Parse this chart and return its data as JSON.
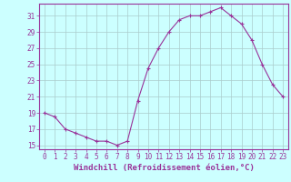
{
  "x": [
    0,
    1,
    2,
    3,
    4,
    5,
    6,
    7,
    8,
    9,
    10,
    11,
    12,
    13,
    14,
    15,
    16,
    17,
    18,
    19,
    20,
    21,
    22,
    23
  ],
  "y": [
    19,
    18.5,
    17,
    16.5,
    16,
    15.5,
    15.5,
    15,
    15.5,
    20.5,
    24.5,
    27,
    29,
    30.5,
    31,
    31,
    31.5,
    32,
    31,
    30,
    28,
    25,
    22.5,
    21
  ],
  "line_color": "#993399",
  "marker": "+",
  "bg_color": "#ccffff",
  "grid_color": "#aacccc",
  "xlabel": "Windchill (Refroidissement éolien,°C)",
  "yticks": [
    15,
    17,
    19,
    21,
    23,
    25,
    27,
    29,
    31
  ],
  "xticks": [
    0,
    1,
    2,
    3,
    4,
    5,
    6,
    7,
    8,
    9,
    10,
    11,
    12,
    13,
    14,
    15,
    16,
    17,
    18,
    19,
    20,
    21,
    22,
    23
  ],
  "ylim": [
    14.5,
    32.5
  ],
  "xlim": [
    -0.5,
    23.5
  ],
  "tick_color": "#993399",
  "axis_color": "#993399",
  "label_fontsize": 6.5,
  "tick_fontsize": 5.5
}
